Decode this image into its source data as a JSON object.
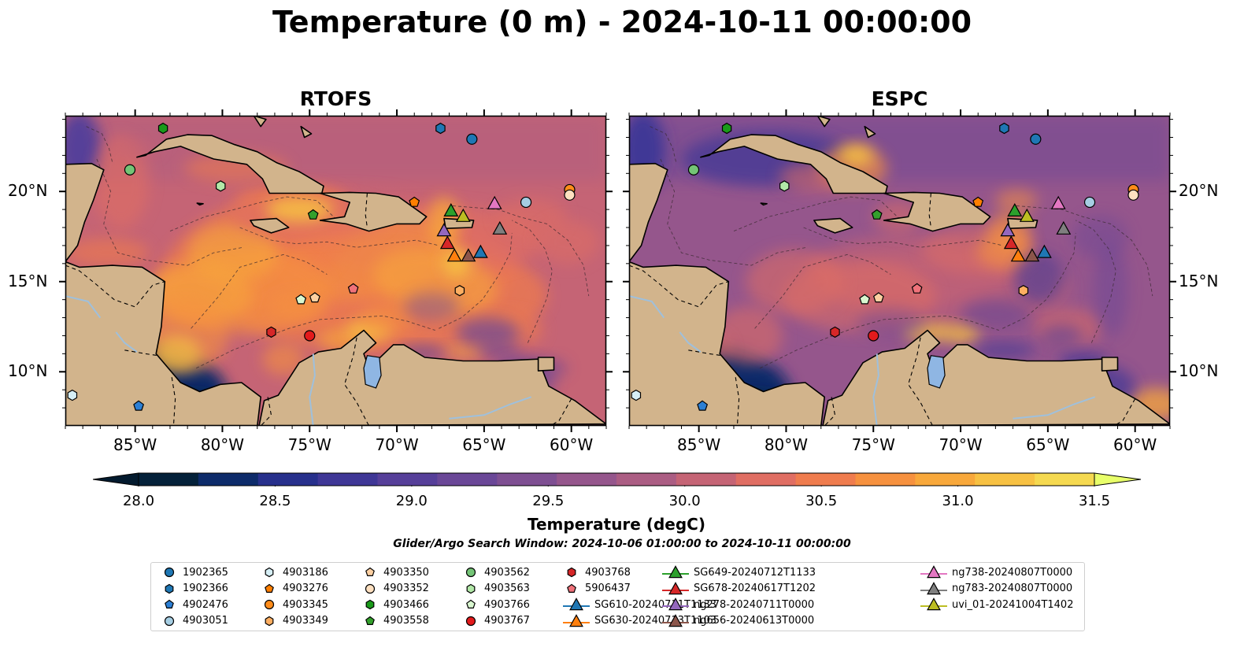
{
  "figure": {
    "title": "Temperature (0 m) - 2024-10-11 00:00:00",
    "search_window": "Glider/Argo Search Window: 2024-10-06 01:00:00 to 2024-10-11 00:00:00"
  },
  "panels": [
    {
      "title": "RTOFS"
    },
    {
      "title": "ESPC"
    }
  ],
  "axes": {
    "lon_ticks": [
      "85°W",
      "80°W",
      "75°W",
      "70°W",
      "65°W",
      "60°W"
    ],
    "lat_ticks": [
      "20°N",
      "15°N",
      "10°N"
    ],
    "lon_range": [
      -89,
      -58
    ],
    "lat_range": [
      7.0,
      24.2
    ]
  },
  "colorbar": {
    "label": "Temperature (degC)",
    "ticks": [
      "28.0",
      "28.5",
      "29.0",
      "29.5",
      "30.0",
      "30.5",
      "31.0",
      "31.5"
    ],
    "range": [
      28.0,
      31.5
    ],
    "colors": [
      "#04213a",
      "#0d2b6a",
      "#27308c",
      "#3f3796",
      "#563f99",
      "#6a4797",
      "#7e4f92",
      "#95568c",
      "#ab5d83",
      "#c56475",
      "#e06e63",
      "#ef7c4e",
      "#f6913f",
      "#f8a83b",
      "#f7c143",
      "#f5d950"
    ],
    "under_color": "#031a2e",
    "over_color": "#e8ff6a"
  },
  "colors": {
    "land": "#d2b48c",
    "lake": "#8fb6e3",
    "grid": "#000000"
  },
  "legend": [
    {
      "name": "1902365",
      "marker": "circle",
      "color": "#1f77b4"
    },
    {
      "name": "1902366",
      "marker": "hexagon",
      "color": "#1f77b4"
    },
    {
      "name": "4902476",
      "marker": "pentagon",
      "color": "#2c7fd4"
    },
    {
      "name": "4903051",
      "marker": "circle",
      "color": "#a6cee3"
    },
    {
      "name": "4903186",
      "marker": "hexagon",
      "color": "#d6eff6"
    },
    {
      "name": "4903276",
      "marker": "pentagon",
      "color": "#ff7f00"
    },
    {
      "name": "4903345",
      "marker": "circle",
      "color": "#ff8c1a"
    },
    {
      "name": "4903349",
      "marker": "hexagon",
      "color": "#fdae61"
    },
    {
      "name": "4903350",
      "marker": "pentagon",
      "color": "#fdd0a2"
    },
    {
      "name": "4903352",
      "marker": "circle",
      "color": "#fee0c0"
    },
    {
      "name": "4903466",
      "marker": "hexagon",
      "color": "#1a9a1a"
    },
    {
      "name": "4903558",
      "marker": "pentagon",
      "color": "#33a02c"
    },
    {
      "name": "4903562",
      "marker": "circle",
      "color": "#74c476"
    },
    {
      "name": "4903563",
      "marker": "hexagon",
      "color": "#b2e8a8"
    },
    {
      "name": "4903766",
      "marker": "pentagon",
      "color": "#d9f7d0"
    },
    {
      "name": "4903767",
      "marker": "circle",
      "color": "#e31a1c"
    },
    {
      "name": "4903768",
      "marker": "hexagon",
      "color": "#d62728"
    },
    {
      "name": "5906437",
      "marker": "pentagon",
      "color": "#f0727a"
    },
    {
      "name": "SG610-20240711T1133",
      "marker": "triangle",
      "color": "#1f77b4"
    },
    {
      "name": "SG630-20240713T1103",
      "marker": "triangle",
      "color": "#ff7f0e"
    },
    {
      "name": "SG649-20240712T1133",
      "marker": "triangle",
      "color": "#2ca02c"
    },
    {
      "name": "SG678-20240617T1202",
      "marker": "triangle",
      "color": "#d62728"
    },
    {
      "name": "ng278-20240711T0000",
      "marker": "triangle",
      "color": "#9467bd"
    },
    {
      "name": "ng656-20240613T0000",
      "marker": "triangle",
      "color": "#8c564b"
    },
    {
      "name": "ng738-20240807T0000",
      "marker": "triangle",
      "color": "#e377c2"
    },
    {
      "name": "ng783-20240807T0000",
      "marker": "triangle",
      "color": "#7f7f7f"
    },
    {
      "name": "uvi_01-20241004T1402",
      "marker": "triangle",
      "color": "#bcbd22"
    }
  ],
  "observations": [
    {
      "name": "1902365",
      "lon": -65.7,
      "lat": 22.9
    },
    {
      "name": "1902366",
      "lon": -67.5,
      "lat": 23.5
    },
    {
      "name": "4902476",
      "lon": -84.8,
      "lat": 8.1
    },
    {
      "name": "4903051",
      "lon": -62.6,
      "lat": 19.4
    },
    {
      "name": "4903186",
      "lon": -88.6,
      "lat": 8.7
    },
    {
      "name": "4903276",
      "lon": -69.0,
      "lat": 19.4
    },
    {
      "name": "4903345",
      "lon": -60.1,
      "lat": 20.1
    },
    {
      "name": "4903349",
      "lon": -66.4,
      "lat": 14.5
    },
    {
      "name": "4903350",
      "lon": -74.7,
      "lat": 14.1
    },
    {
      "name": "4903352",
      "lon": -60.1,
      "lat": 19.8
    },
    {
      "name": "4903466",
      "lon": -83.4,
      "lat": 23.5
    },
    {
      "name": "4903558",
      "lon": -74.8,
      "lat": 18.7
    },
    {
      "name": "4903562",
      "lon": -85.3,
      "lat": 21.2
    },
    {
      "name": "4903563",
      "lon": -80.1,
      "lat": 20.3
    },
    {
      "name": "4903766",
      "lon": -75.5,
      "lat": 14.0
    },
    {
      "name": "4903767",
      "lon": -75.0,
      "lat": 12.0
    },
    {
      "name": "4903768",
      "lon": -77.2,
      "lat": 12.2
    },
    {
      "name": "5906437",
      "lon": -72.5,
      "lat": 14.6
    },
    {
      "name": "SG610-20240711T1133",
      "lon": -65.2,
      "lat": 16.6
    },
    {
      "name": "SG630-20240713T1103",
      "lon": -66.7,
      "lat": 16.4
    },
    {
      "name": "SG649-20240712T1133",
      "lon": -66.9,
      "lat": 18.9
    },
    {
      "name": "SG678-20240617T1202",
      "lon": -67.1,
      "lat": 17.1
    },
    {
      "name": "ng278-20240711T0000",
      "lon": -67.3,
      "lat": 17.8
    },
    {
      "name": "ng656-20240613T0000",
      "lon": -65.9,
      "lat": 16.4
    },
    {
      "name": "ng738-20240807T0000",
      "lon": -64.4,
      "lat": 19.3
    },
    {
      "name": "ng783-20240807T0000",
      "lon": -64.1,
      "lat": 17.9
    },
    {
      "name": "uvi_01-20241004T1402",
      "lon": -66.2,
      "lat": 18.6
    }
  ]
}
